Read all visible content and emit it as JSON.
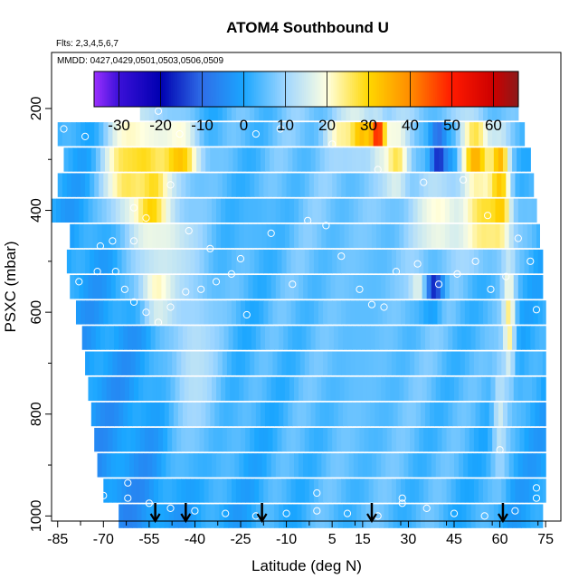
{
  "chart_data": {
    "type": "heatmap",
    "title": "ATOM4 Southbound U",
    "subtitle_flights": "Flts: 2,3,4,5,6,7",
    "subtitle_dates": "MMDD: 0427,0429,0501,0503,0506,0509",
    "xlabel": "Latitude (deg N)",
    "ylabel": "PSXC (mbar)",
    "xlim": [
      -87,
      80
    ],
    "ylim": [
      1010,
      90
    ],
    "x_ticks": [
      -85,
      -70,
      -55,
      -40,
      -25,
      -10,
      5,
      15,
      30,
      45,
      60,
      75
    ],
    "x_tick_labels": [
      "-85",
      "-70",
      "-55",
      "-40",
      "-25",
      "-10",
      "5",
      "15",
      "30",
      "45",
      "60",
      "75"
    ],
    "y_ticks": [
      200,
      400,
      600,
      800,
      1000
    ],
    "y_tick_labels": [
      "200",
      "400",
      "600",
      "800",
      "1000"
    ],
    "colorbar": {
      "ticks": [
        -30,
        -20,
        -10,
        0,
        10,
        20,
        30,
        40,
        50,
        60
      ],
      "tick_labels": [
        "-30",
        "-20",
        "-10",
        "0",
        "10",
        "20",
        "30",
        "40",
        "50",
        "60"
      ],
      "range": [
        -36,
        66
      ],
      "colors": [
        {
          "v": -36,
          "c": "#9b30ff"
        },
        {
          "v": -30,
          "c": "#3a10d8"
        },
        {
          "v": -20,
          "c": "#0000b0"
        },
        {
          "v": -10,
          "c": "#2f6ee8"
        },
        {
          "v": 0,
          "c": "#1aa6ff"
        },
        {
          "v": 10,
          "c": "#9fd6ff"
        },
        {
          "v": 20,
          "c": "#ffffe0"
        },
        {
          "v": 30,
          "c": "#ffd700"
        },
        {
          "v": 40,
          "c": "#ff8c00"
        },
        {
          "v": 50,
          "c": "#ff1a00"
        },
        {
          "v": 60,
          "c": "#cc0000"
        },
        {
          "v": 66,
          "c": "#8b1a1a"
        }
      ]
    },
    "pressure_levels": [
      200,
      250,
      300,
      350,
      400,
      450,
      500,
      550,
      600,
      650,
      700,
      750,
      800,
      850,
      900,
      950,
      1000
    ],
    "level_extents": [
      [
        -58,
        66
      ],
      [
        -85,
        68
      ],
      [
        -83,
        70
      ],
      [
        -85,
        71
      ],
      [
        -87,
        72
      ],
      [
        -81,
        73
      ],
      [
        -82,
        74
      ],
      [
        -81,
        74
      ],
      [
        -79,
        75
      ],
      [
        -77,
        75
      ],
      [
        -76,
        75
      ],
      [
        -75,
        75
      ],
      [
        -74,
        75
      ],
      [
        -73,
        75
      ],
      [
        -72,
        75
      ],
      [
        -70,
        75
      ],
      [
        -65,
        74
      ]
    ],
    "features": [
      {
        "lat": -54,
        "p": 390,
        "v": 55,
        "wl": 5,
        "wp": 55
      },
      {
        "lat": -58,
        "p": 285,
        "v": 35,
        "wl": 8,
        "wp": 60
      },
      {
        "lat": -45,
        "p": 290,
        "v": 35,
        "wl": 7,
        "wp": 50
      },
      {
        "lat": -62,
        "p": 330,
        "v": 28,
        "wl": 8,
        "wp": 90
      },
      {
        "lat": -50,
        "p": 460,
        "v": 18,
        "wl": 12,
        "wp": 90
      },
      {
        "lat": -52,
        "p": 570,
        "v": 28,
        "wl": 6,
        "wp": 40
      },
      {
        "lat": -55,
        "p": 230,
        "v": 18,
        "wl": 10,
        "wp": 40
      },
      {
        "lat": 14,
        "p": 250,
        "v": 38,
        "wl": 5,
        "wp": 40
      },
      {
        "lat": 20,
        "p": 250,
        "v": 55,
        "wl": 2.5,
        "wp": 35
      },
      {
        "lat": 8,
        "p": 240,
        "v": 25,
        "wl": 5,
        "wp": 30
      },
      {
        "lat": 26,
        "p": 300,
        "v": 28,
        "wl": 4,
        "wp": 60
      },
      {
        "lat": 40,
        "p": 280,
        "v": -28,
        "wl": 3,
        "wp": 35
      },
      {
        "lat": 45,
        "p": 280,
        "v": -12,
        "wl": 3,
        "wp": 30
      },
      {
        "lat": 52,
        "p": 290,
        "v": 36,
        "wl": 5,
        "wp": 70
      },
      {
        "lat": 60,
        "p": 320,
        "v": 38,
        "wl": 3,
        "wp": 55
      },
      {
        "lat": 60,
        "p": 400,
        "v": 35,
        "wl": 3,
        "wp": 60
      },
      {
        "lat": 55,
        "p": 420,
        "v": 30,
        "wl": 8,
        "wp": 60
      },
      {
        "lat": 40,
        "p": 420,
        "v": 22,
        "wl": 8,
        "wp": 60
      },
      {
        "lat": 38,
        "p": 560,
        "v": -20,
        "wl": 3.5,
        "wp": 35
      },
      {
        "lat": 33,
        "p": 550,
        "v": 18,
        "wl": 3,
        "wp": 30
      },
      {
        "lat": 63,
        "p": 620,
        "v": 25,
        "wl": 2,
        "wp": 120
      },
      {
        "lat": 60,
        "p": 800,
        "v": 15,
        "wl": 2.5,
        "wp": 120
      },
      {
        "lat": 15,
        "p": 650,
        "v": 5,
        "wl": 12,
        "wp": 250
      },
      {
        "lat": -20,
        "p": 420,
        "v": 3,
        "wl": 8,
        "wp": 60
      },
      {
        "lat": -40,
        "p": 700,
        "v": 13,
        "wl": 10,
        "wp": 200
      }
    ],
    "observation_points": [
      [
        -83,
        240
      ],
      [
        -76,
        255
      ],
      [
        -71,
        470
      ],
      [
        -66,
        520
      ],
      [
        -63,
        555
      ],
      [
        -60,
        580
      ],
      [
        -56,
        600
      ],
      [
        -52,
        620
      ],
      [
        -48,
        590
      ],
      [
        -43,
        560
      ],
      [
        -38,
        555
      ],
      [
        -33,
        540
      ],
      [
        -28,
        525
      ],
      [
        -23,
        605
      ],
      [
        -15,
        445
      ],
      [
        -8,
        545
      ],
      [
        -3,
        420
      ],
      [
        3,
        430
      ],
      [
        8,
        490
      ],
      [
        14,
        555
      ],
      [
        18,
        585
      ],
      [
        22,
        590
      ],
      [
        26,
        520
      ],
      [
        33,
        505
      ],
      [
        40,
        545
      ],
      [
        46,
        525
      ],
      [
        52,
        500
      ],
      [
        57,
        555
      ],
      [
        62,
        530
      ],
      [
        66,
        455
      ],
      [
        70,
        500
      ],
      [
        72,
        595
      ],
      [
        -60,
        395
      ],
      [
        -56,
        415
      ],
      [
        -48,
        350
      ],
      [
        -42,
        440
      ],
      [
        -35,
        475
      ],
      [
        -25,
        495
      ],
      [
        -20,
        250
      ],
      [
        -12,
        240
      ],
      [
        5,
        270
      ],
      [
        20,
        320
      ],
      [
        35,
        345
      ],
      [
        48,
        340
      ],
      [
        56,
        410
      ],
      [
        -70,
        960
      ],
      [
        -62,
        965
      ],
      [
        -55,
        975
      ],
      [
        -48,
        985
      ],
      [
        -40,
        990
      ],
      [
        -30,
        995
      ],
      [
        -20,
        1000
      ],
      [
        -10,
        995
      ],
      [
        0,
        990
      ],
      [
        10,
        995
      ],
      [
        20,
        1000
      ],
      [
        28,
        975
      ],
      [
        36,
        985
      ],
      [
        45,
        995
      ],
      [
        55,
        1000
      ],
      [
        65,
        990
      ],
      [
        72,
        965
      ],
      [
        0,
        955
      ],
      [
        28,
        965
      ],
      [
        -62,
        935
      ],
      [
        72,
        945
      ],
      [
        -78,
        540
      ],
      [
        -72,
        520
      ],
      [
        -67,
        460
      ],
      [
        -60,
        460
      ],
      [
        -55,
        190
      ],
      [
        -52,
        205
      ],
      [
        -45,
        250
      ],
      [
        -65,
        225
      ],
      [
        60,
        870
      ]
    ],
    "arrows_lat": [
      -53,
      -43,
      -18,
      18,
      61
    ]
  }
}
